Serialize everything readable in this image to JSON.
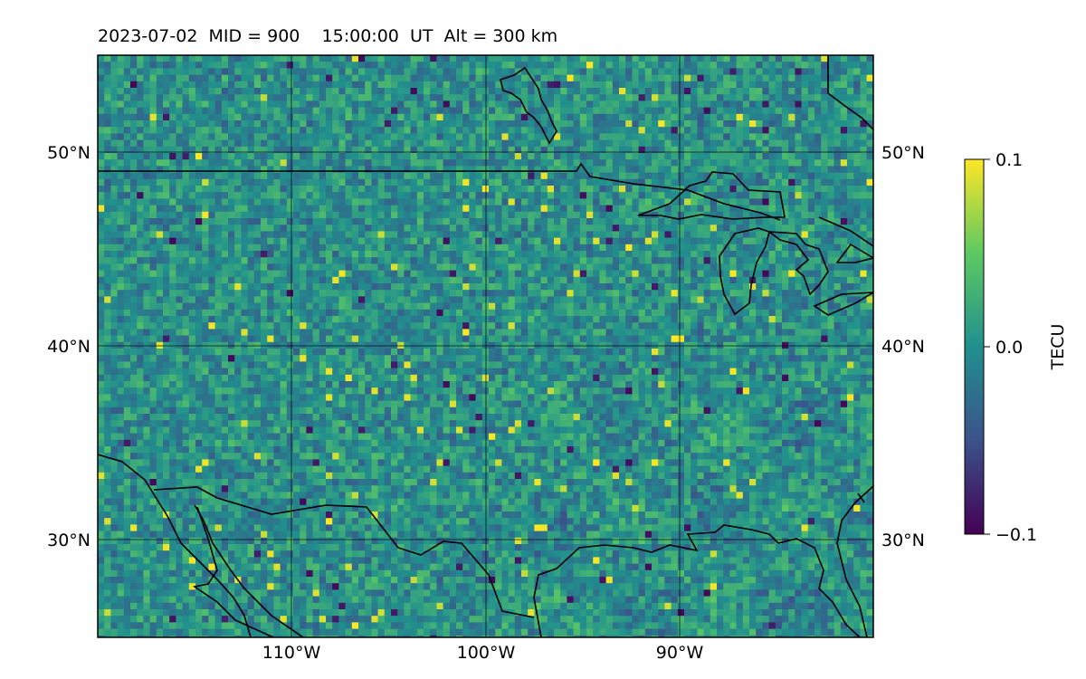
{
  "header": {
    "title": "2023-07-02  MID = 900    15:00:00  UT  Alt = 300 km"
  },
  "map": {
    "extent": {
      "lon_min": -120,
      "lon_max": -80,
      "lat_min": 25,
      "lat_max": 55
    },
    "gridlines": {
      "lons": [
        -110,
        -100,
        -90
      ],
      "lats": [
        30,
        40,
        50
      ]
    },
    "lon_labels": [
      "110°W",
      "100°W",
      "90°W"
    ],
    "lat_labels": [
      "30°N",
      "40°N",
      "50°N"
    ],
    "field": "TEC perturbation",
    "coastline_color": "#000000"
  },
  "colorbar": {
    "label": "TECU",
    "min": -0.1,
    "max": 0.1,
    "tick_labels": [
      "0.1",
      "0.0",
      "−0.1"
    ],
    "colormap": "viridis",
    "colors": [
      "#440154",
      "#3b528b",
      "#21908d",
      "#5dc963",
      "#fde725"
    ]
  }
}
